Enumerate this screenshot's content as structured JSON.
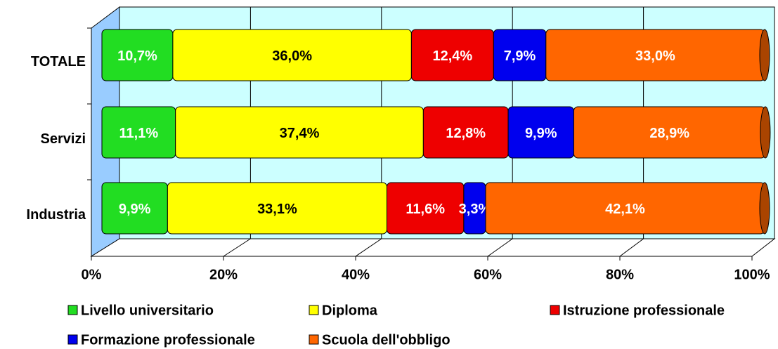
{
  "chart_data": {
    "type": "stacked-bar-horizontal-3d",
    "categories": [
      "TOTALE",
      "Servizi",
      "Industria"
    ],
    "series": [
      {
        "name": "Livello universitario",
        "color": "#22dd22",
        "label_color": "#ffffff",
        "values": [
          10.7,
          11.1,
          9.9
        ],
        "value_labels": [
          "10,7%",
          "11,1%",
          "9,9%"
        ]
      },
      {
        "name": "Diploma",
        "color": "#ffff00",
        "label_color": "#000000",
        "values": [
          36.0,
          37.4,
          33.1
        ],
        "value_labels": [
          "36,0%",
          "37,4%",
          "33,1%"
        ]
      },
      {
        "name": "Istruzione professionale",
        "color": "#ee0000",
        "label_color": "#ffffff",
        "values": [
          12.4,
          12.8,
          11.6
        ],
        "value_labels": [
          "12,4%",
          "12,8%",
          "11,6%"
        ]
      },
      {
        "name": "Formazione professionale",
        "color": "#0000ee",
        "label_color": "#ffffff",
        "values": [
          7.9,
          9.9,
          3.3
        ],
        "value_labels": [
          "7,9%",
          "9,9%",
          "3,3%"
        ]
      },
      {
        "name": "Scuola dell'obbligo",
        "color": "#ff6600",
        "label_color": "#ffffff",
        "values": [
          33.0,
          28.9,
          42.1
        ],
        "value_labels": [
          "33,0%",
          "28,9%",
          "42,1%"
        ]
      }
    ],
    "xlim": [
      0,
      100
    ],
    "xticks": [
      {
        "value": 0,
        "label": "0%"
      },
      {
        "value": 20,
        "label": "20%"
      },
      {
        "value": 40,
        "label": "40%"
      },
      {
        "value": 60,
        "label": "60%"
      },
      {
        "value": 80,
        "label": "80%"
      },
      {
        "value": 100,
        "label": "100%"
      }
    ],
    "grid": true
  }
}
